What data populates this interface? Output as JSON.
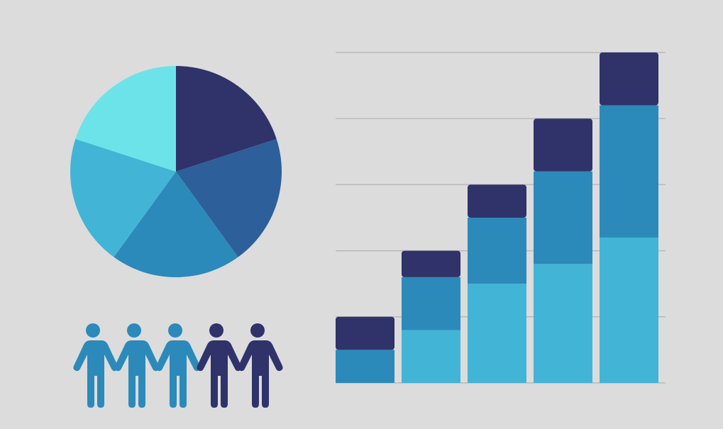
{
  "chart_data": [
    {
      "type": "pie",
      "values": [
        20,
        20,
        20,
        20,
        20
      ],
      "colors": [
        "#2f3369",
        "#2d5f9a",
        "#2b8aba",
        "#42b5d6",
        "#6ce3e8"
      ]
    },
    {
      "type": "bar",
      "stacked": true,
      "categories": [
        null,
        null,
        null,
        null,
        null
      ],
      "series": [
        {
          "color": "#42b5d6",
          "values": [
            0,
            0.8,
            1.5,
            1.8,
            2.2
          ]
        },
        {
          "color": "#2b8aba",
          "values": [
            0.5,
            0.8,
            1.0,
            1.4,
            2.0
          ]
        },
        {
          "color": "#2f3369",
          "values": [
            0.5,
            0.4,
            0.5,
            0.8,
            0.8
          ]
        }
      ],
      "ylim": [
        0,
        5
      ],
      "yticks": [
        1,
        2,
        3,
        4,
        5
      ],
      "grid": true
    }
  ]
}
